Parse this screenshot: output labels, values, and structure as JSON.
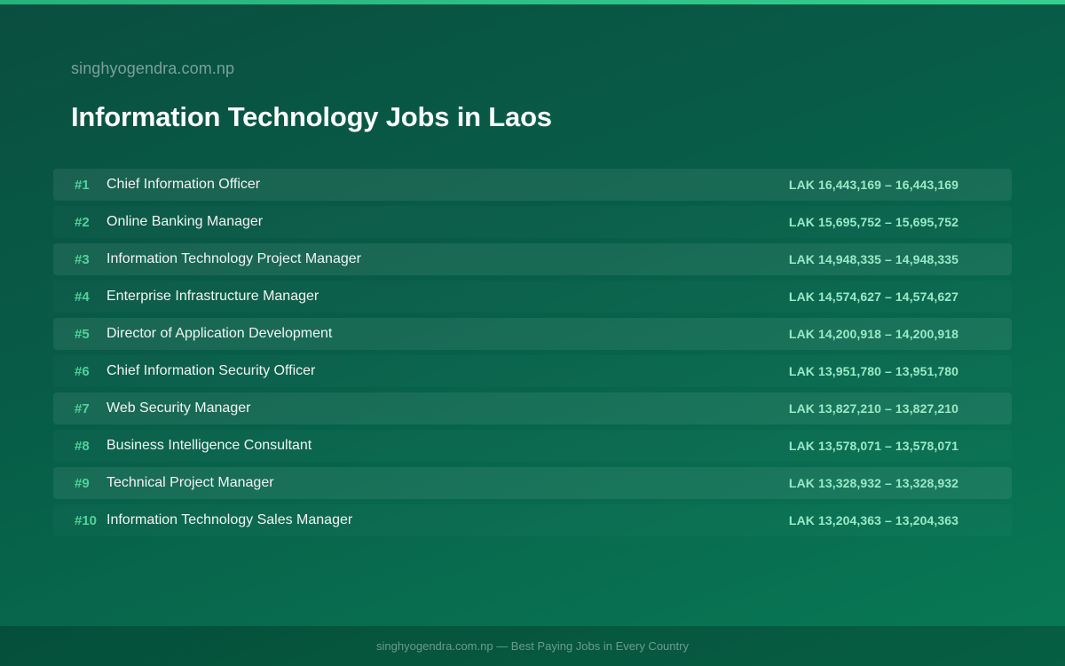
{
  "header": {
    "site": "singhyogendra.com.np",
    "title": "Information Technology Jobs in Laos"
  },
  "jobs": [
    {
      "rank": "#1",
      "title": "Chief Information Officer",
      "salary": "LAK 16,443,169 – 16,443,169"
    },
    {
      "rank": "#2",
      "title": "Online Banking Manager",
      "salary": "LAK 15,695,752 – 15,695,752"
    },
    {
      "rank": "#3",
      "title": "Information Technology Project Manager",
      "salary": "LAK 14,948,335 – 14,948,335"
    },
    {
      "rank": "#4",
      "title": "Enterprise Infrastructure Manager",
      "salary": "LAK 14,574,627 – 14,574,627"
    },
    {
      "rank": "#5",
      "title": "Director of Application Development",
      "salary": "LAK 14,200,918 – 14,200,918"
    },
    {
      "rank": "#6",
      "title": "Chief Information Security Officer",
      "salary": "LAK 13,951,780 – 13,951,780"
    },
    {
      "rank": "#7",
      "title": "Web Security Manager",
      "salary": "LAK 13,827,210 – 13,827,210"
    },
    {
      "rank": "#8",
      "title": "Business Intelligence Consultant",
      "salary": "LAK 13,578,071 – 13,578,071"
    },
    {
      "rank": "#9",
      "title": "Technical Project Manager",
      "salary": "LAK 13,328,932 – 13,328,932"
    },
    {
      "rank": "#10",
      "title": "Information Technology Sales Manager",
      "salary": "LAK 13,204,363 – 13,204,363"
    }
  ],
  "footer": {
    "text": "singhyogendra.com.np — Best Paying Jobs in Every Country"
  },
  "colors": {
    "accent": "#35d08f",
    "rank": "#4fd39a",
    "salary": "#9ae8c6",
    "background": "#075f48"
  }
}
